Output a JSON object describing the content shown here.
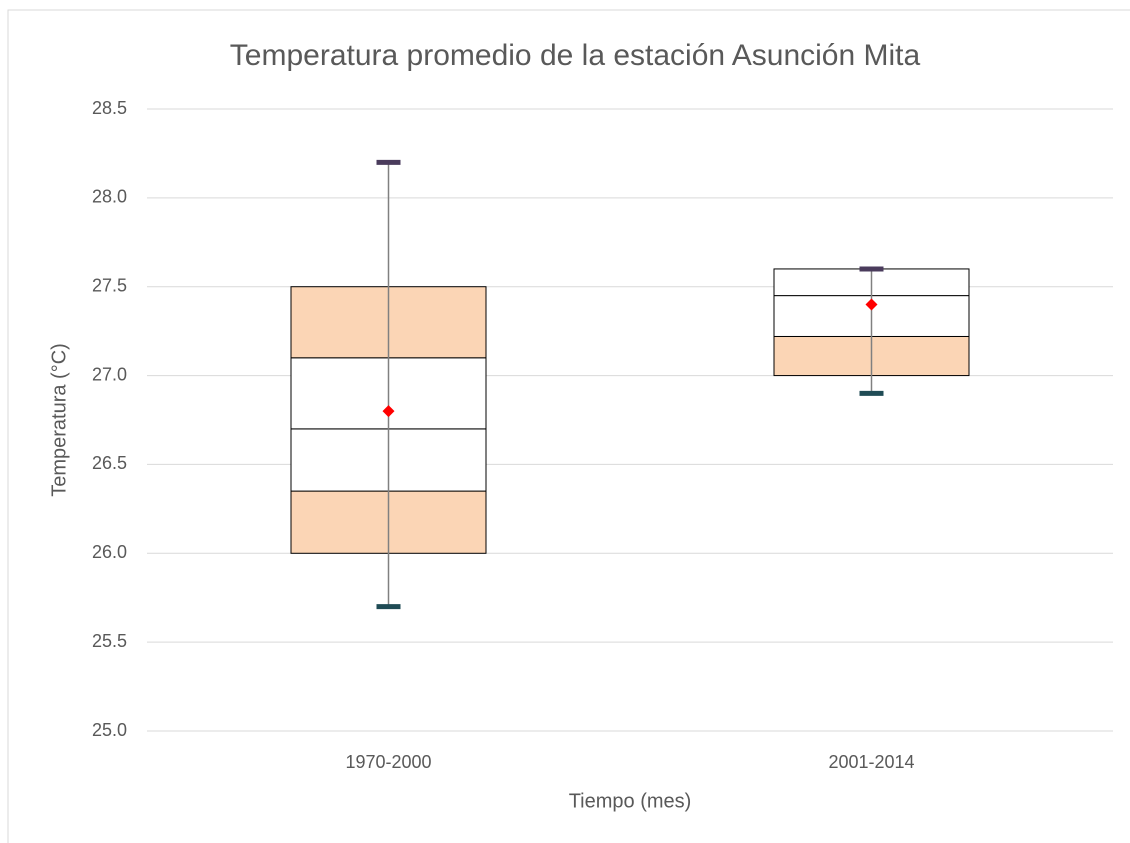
{
  "chart_data": {
    "type": "box",
    "title": "Temperatura promedio de la estación Asunción Mita",
    "x_label": "Tiempo (mes)",
    "y_label": "Temperatura (°C)",
    "categories": [
      "1970-2000",
      "2001-2014"
    ],
    "boxes": [
      {
        "whisker_low": 25.7,
        "whisker_high": 28.2,
        "edges": [
          26.0,
          26.35,
          26.7,
          27.1,
          27.5
        ],
        "fills": [
          "#fbd5b5",
          "#ffffff",
          "#ffffff",
          "#fbd5b5"
        ],
        "mean": 26.8
      },
      {
        "whisker_low": 26.9,
        "whisker_high": 27.6,
        "edges": [
          27.0,
          27.22,
          27.45,
          27.6
        ],
        "fills": [
          "#fbd5b5",
          "#ffffff",
          "#ffffff"
        ],
        "mean": 27.4
      }
    ],
    "ylim": [
      25,
      28.5
    ],
    "yticks": [
      {
        "value": 25,
        "label": "25.0"
      },
      25.5,
      {
        "value": 26,
        "label": "26.0"
      },
      26.5,
      {
        "value": 27,
        "label": "27.0"
      },
      27.5,
      {
        "value": 28,
        "label": "28.0"
      },
      28.5
    ],
    "grid": true,
    "mean_color": "#ff0000",
    "whisker_color": "#808080",
    "cap_high_color": "#4a3b5c",
    "cap_low_color": "#1f4b55"
  }
}
